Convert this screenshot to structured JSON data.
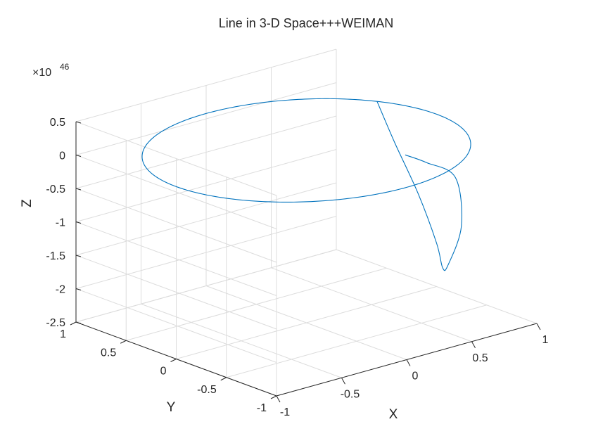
{
  "chart_data": {
    "type": "line",
    "title": "Line in 3-D Space+++WEIMAN",
    "xlabel": "X",
    "ylabel": "Y",
    "zlabel": "Z",
    "z_exponent_base": "×10",
    "z_exponent_power": "46",
    "xlim": [
      -1,
      1
    ],
    "ylim": [
      -1,
      1
    ],
    "zlim": [
      -2.5,
      0.5
    ],
    "x_ticks": [
      -1,
      -0.5,
      0,
      0.5,
      1
    ],
    "x_tick_labels": [
      "-1",
      "-0.5",
      "0",
      "0.5",
      "1"
    ],
    "y_ticks": [
      -1,
      -0.5,
      0,
      0.5,
      1
    ],
    "y_tick_labels": [
      "-1",
      "-0.5",
      "0",
      "0.5",
      "1"
    ],
    "z_ticks": [
      -2.5,
      -2,
      -1.5,
      -1,
      -0.5,
      0,
      0.5
    ],
    "z_tick_labels": [
      "-2.5",
      "-2",
      "-1.5",
      "-1",
      "-0.5",
      "0",
      "0.5"
    ],
    "z_scale_note": "values in units of 1e46",
    "grid": true,
    "series": [
      {
        "color": "#0072bd",
        "segments": [
          {
            "kind": "circle",
            "x_center": 0,
            "y_center": 0,
            "radius": 1,
            "z": 0.08
          },
          {
            "kind": "path",
            "points": [
              [
                0.89,
                0.45,
                0.08
              ],
              [
                0.94,
                0.34,
                -0.5
              ],
              [
                0.99,
                0.17,
                -1.2
              ],
              [
                1.0,
                0.0,
                -1.85
              ],
              [
                0.97,
                -0.1,
                -2.15
              ],
              [
                0.95,
                -0.18,
                -2.05
              ],
              [
                0.96,
                -0.3,
                -1.4
              ],
              [
                0.99,
                -0.2,
                -0.75
              ],
              [
                1.0,
                0.1,
                -0.7
              ],
              [
                0.99,
                0.3,
                -0.69
              ]
            ]
          }
        ]
      }
    ]
  }
}
